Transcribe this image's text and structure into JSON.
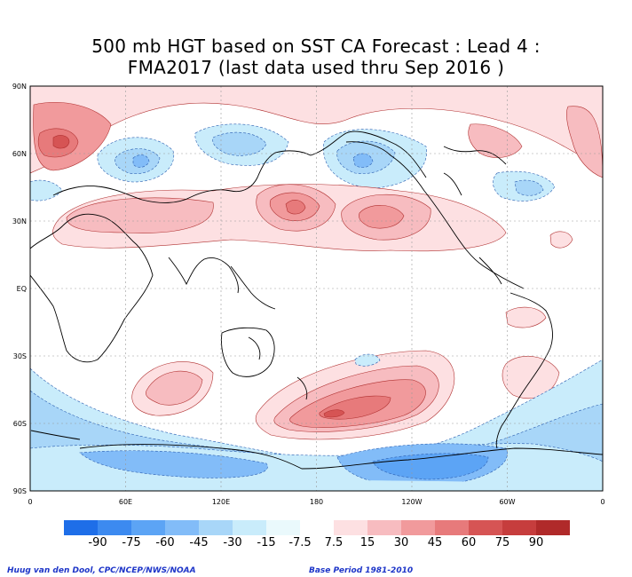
{
  "title_line1": "500 mb HGT based on SST CA Forecast : Lead 4 :",
  "title_line2": "FMA2017 (last data used thru Sep 2016 )",
  "lat_labels": [
    "90N",
    "60N",
    "30N",
    "EQ",
    "30S",
    "60S",
    "90S"
  ],
  "lon_labels": [
    "0",
    "60E",
    "120E",
    "180",
    "120W",
    "60W",
    "0"
  ],
  "colorbar": {
    "colors": [
      "#1e6ee8",
      "#3c8af0",
      "#5ca4f5",
      "#82bcf8",
      "#a8d6f8",
      "#c9ecfb",
      "#eaf9fc",
      "#ffffff",
      "#fde0e2",
      "#f7bcc0",
      "#f19a9c",
      "#e77a7b",
      "#d65454",
      "#c63d3d",
      "#b02a2a"
    ],
    "labels": [
      "-90",
      "-75",
      "-60",
      "-45",
      "-30",
      "-15",
      "-7.5",
      "7.5",
      "15",
      "30",
      "45",
      "60",
      "75",
      "90"
    ]
  },
  "footer_left": "Huug van den Dool, CPC/NCEP/NWS/NOAA",
  "footer_right": "Base Period 1981-2010"
}
